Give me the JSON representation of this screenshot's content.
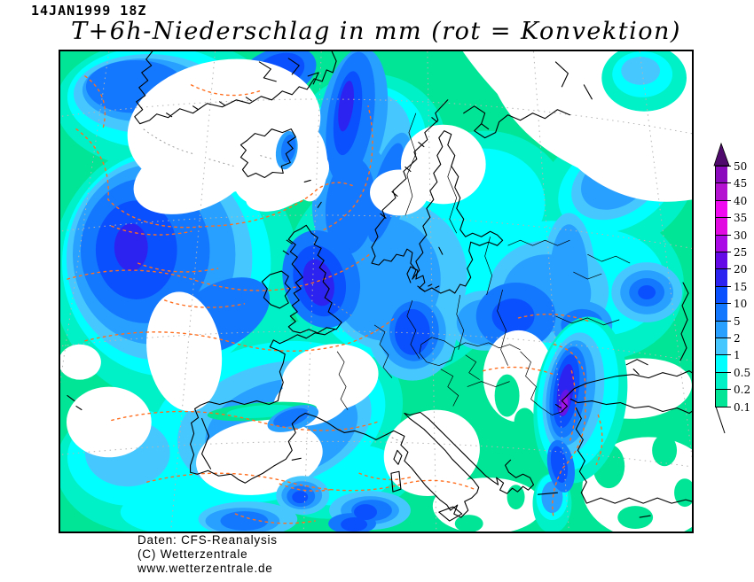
{
  "header": {
    "timestamp": "14JAN1999 18Z",
    "title": "T+6h-Niederschlag in mm (rot = Konvektion)"
  },
  "legend": {
    "unit": "mm",
    "arrow_color": "#500a6e",
    "tick_labels": [
      "50",
      "45",
      "40",
      "35",
      "30",
      "25",
      "20",
      "15",
      "10",
      "5",
      "2",
      "1",
      "0.5",
      "0.2",
      "0.1"
    ],
    "segment_colors": [
      "#8c0abe",
      "#b414d2",
      "#f00af0",
      "#e10ae1",
      "#aa0ae6",
      "#640ae6",
      "#2d23f0",
      "#0a50ff",
      "#1478ff",
      "#28a0ff",
      "#46c8ff",
      "#00ffff",
      "#00f0c8",
      "#00e696"
    ],
    "convection_contour_color": "#ff6e1e"
  },
  "footer": {
    "lines": [
      "Daten: CFS-Reanalysis",
      "(C) Wetterzentrale",
      "www.wetterzentrale.de"
    ]
  }
}
